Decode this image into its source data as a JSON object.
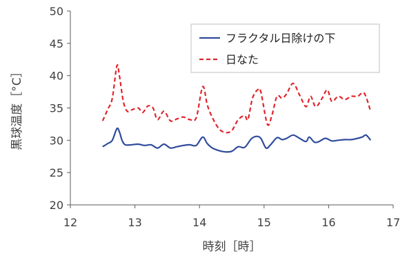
{
  "chart_data": {
    "type": "line",
    "xlabel": "時刻［時］",
    "ylabel": "黒球温度［°C］",
    "xlim": [
      12,
      17
    ],
    "ylim": [
      20,
      50
    ],
    "xticks": [
      12,
      13,
      14,
      15,
      16,
      17
    ],
    "yticks": [
      20,
      25,
      30,
      35,
      40,
      45,
      50
    ],
    "grid": false,
    "legend_position": "top-right",
    "series": [
      {
        "name": "フラクタル日除けの下",
        "color": "#2f4b9c",
        "style": "solid",
        "points": [
          [
            12.5,
            29.0
          ],
          [
            12.58,
            29.5
          ],
          [
            12.65,
            30.0
          ],
          [
            12.72,
            31.8
          ],
          [
            12.76,
            31.3
          ],
          [
            12.8,
            30.0
          ],
          [
            12.85,
            29.3
          ],
          [
            12.95,
            29.3
          ],
          [
            13.05,
            29.4
          ],
          [
            13.15,
            29.2
          ],
          [
            13.25,
            29.3
          ],
          [
            13.35,
            28.8
          ],
          [
            13.45,
            29.4
          ],
          [
            13.55,
            28.8
          ],
          [
            13.65,
            29.0
          ],
          [
            13.75,
            29.2
          ],
          [
            13.85,
            29.3
          ],
          [
            13.95,
            29.2
          ],
          [
            14.05,
            30.5
          ],
          [
            14.12,
            29.5
          ],
          [
            14.2,
            28.8
          ],
          [
            14.3,
            28.4
          ],
          [
            14.4,
            28.2
          ],
          [
            14.5,
            28.3
          ],
          [
            14.6,
            29.0
          ],
          [
            14.7,
            28.9
          ],
          [
            14.8,
            30.2
          ],
          [
            14.88,
            30.6
          ],
          [
            14.95,
            30.3
          ],
          [
            15.03,
            28.8
          ],
          [
            15.1,
            29.3
          ],
          [
            15.2,
            30.4
          ],
          [
            15.28,
            30.1
          ],
          [
            15.35,
            30.3
          ],
          [
            15.45,
            30.8
          ],
          [
            15.55,
            30.3
          ],
          [
            15.65,
            29.8
          ],
          [
            15.7,
            30.5
          ],
          [
            15.78,
            29.7
          ],
          [
            15.85,
            29.8
          ],
          [
            15.95,
            30.3
          ],
          [
            16.05,
            29.9
          ],
          [
            16.15,
            30.0
          ],
          [
            16.25,
            30.1
          ],
          [
            16.35,
            30.1
          ],
          [
            16.45,
            30.3
          ],
          [
            16.52,
            30.5
          ],
          [
            16.58,
            30.8
          ],
          [
            16.65,
            30.0
          ]
        ]
      },
      {
        "name": "日なた",
        "color": "#e0242b",
        "style": "dashed",
        "points": [
          [
            12.5,
            33.0
          ],
          [
            12.58,
            34.8
          ],
          [
            12.65,
            36.5
          ],
          [
            12.72,
            41.5
          ],
          [
            12.76,
            40.0
          ],
          [
            12.82,
            36.0
          ],
          [
            12.88,
            34.5
          ],
          [
            12.95,
            34.7
          ],
          [
            13.05,
            35.0
          ],
          [
            13.12,
            34.3
          ],
          [
            13.2,
            35.3
          ],
          [
            13.28,
            35.0
          ],
          [
            13.35,
            33.2
          ],
          [
            13.45,
            34.5
          ],
          [
            13.55,
            33.0
          ],
          [
            13.65,
            33.3
          ],
          [
            13.75,
            33.6
          ],
          [
            13.85,
            33.2
          ],
          [
            13.95,
            33.5
          ],
          [
            14.05,
            38.3
          ],
          [
            14.12,
            35.5
          ],
          [
            14.2,
            33.5
          ],
          [
            14.3,
            31.8
          ],
          [
            14.4,
            31.2
          ],
          [
            14.5,
            31.5
          ],
          [
            14.6,
            33.2
          ],
          [
            14.7,
            33.8
          ],
          [
            14.75,
            33.2
          ],
          [
            14.82,
            36.5
          ],
          [
            14.9,
            37.8
          ],
          [
            14.95,
            37.5
          ],
          [
            15.05,
            32.5
          ],
          [
            15.12,
            33.8
          ],
          [
            15.2,
            36.8
          ],
          [
            15.28,
            36.5
          ],
          [
            15.35,
            37.2
          ],
          [
            15.45,
            38.8
          ],
          [
            15.55,
            37.0
          ],
          [
            15.65,
            35.2
          ],
          [
            15.72,
            36.8
          ],
          [
            15.8,
            35.2
          ],
          [
            15.9,
            36.5
          ],
          [
            15.98,
            37.8
          ],
          [
            16.05,
            36.0
          ],
          [
            16.15,
            36.8
          ],
          [
            16.25,
            36.3
          ],
          [
            16.35,
            36.8
          ],
          [
            16.45,
            36.8
          ],
          [
            16.55,
            37.3
          ],
          [
            16.65,
            34.5
          ]
        ]
      }
    ]
  }
}
